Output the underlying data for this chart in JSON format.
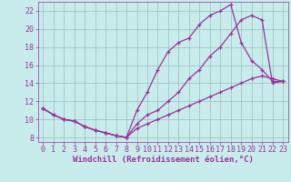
{
  "xlabel": "Windchill (Refroidissement éolien,°C)",
  "bg_color": "#c8ecec",
  "line_color": "#993399",
  "xlim": [
    -0.5,
    23.5
  ],
  "ylim": [
    7.5,
    23.0
  ],
  "yticks": [
    8,
    10,
    12,
    14,
    16,
    18,
    20,
    22
  ],
  "xticks": [
    0,
    1,
    2,
    3,
    4,
    5,
    6,
    7,
    8,
    9,
    10,
    11,
    12,
    13,
    14,
    15,
    16,
    17,
    18,
    19,
    20,
    21,
    22,
    23
  ],
  "line1_x": [
    0,
    1,
    2,
    3,
    4,
    5,
    6,
    7,
    8,
    9,
    10,
    11,
    12,
    13,
    14,
    15,
    16,
    17,
    18,
    19,
    20,
    21,
    22,
    23
  ],
  "line1_y": [
    11.2,
    10.5,
    10.0,
    9.8,
    9.2,
    8.8,
    8.5,
    8.2,
    8.0,
    11.0,
    13.0,
    15.5,
    17.5,
    18.5,
    19.0,
    20.5,
    21.5,
    22.0,
    22.7,
    18.5,
    16.5,
    15.5,
    14.2,
    14.2
  ],
  "line2_x": [
    0,
    1,
    2,
    3,
    4,
    5,
    6,
    7,
    8,
    9,
    10,
    11,
    12,
    13,
    14,
    15,
    16,
    17,
    18,
    19,
    20,
    21,
    22,
    23
  ],
  "line2_y": [
    11.2,
    10.5,
    10.0,
    9.8,
    9.2,
    8.8,
    8.5,
    8.2,
    8.0,
    9.5,
    10.5,
    11.0,
    12.0,
    13.0,
    14.5,
    15.5,
    17.0,
    18.0,
    19.5,
    21.0,
    21.5,
    21.0,
    14.0,
    14.2
  ],
  "line3_x": [
    0,
    1,
    2,
    3,
    4,
    5,
    6,
    7,
    8,
    9,
    10,
    11,
    12,
    13,
    14,
    15,
    16,
    17,
    18,
    19,
    20,
    21,
    22,
    23
  ],
  "line3_y": [
    11.2,
    10.5,
    10.0,
    9.8,
    9.2,
    8.8,
    8.5,
    8.2,
    8.0,
    9.0,
    9.5,
    10.0,
    10.5,
    11.0,
    11.5,
    12.0,
    12.5,
    13.0,
    13.5,
    14.0,
    14.5,
    14.8,
    14.5,
    14.2
  ],
  "marker": "+",
  "markersize": 3,
  "linewidth": 0.9,
  "grid_color": "#9bbfbf",
  "xlabel_fontsize": 6.5,
  "tick_fontsize": 6.0
}
